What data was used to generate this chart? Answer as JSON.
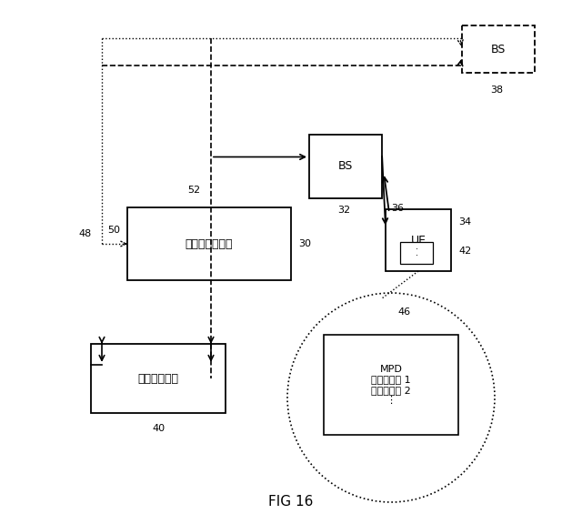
{
  "bg_color": "#ffffff",
  "fig_title": "FIG 16",
  "wrm_label": "無線資源管理部",
  "client_label": "クライアント",
  "mpd_label": "MPD\nバージョン 1\nバージョン 2\n⋮",
  "font_size_label": 9,
  "font_size_id": 8
}
